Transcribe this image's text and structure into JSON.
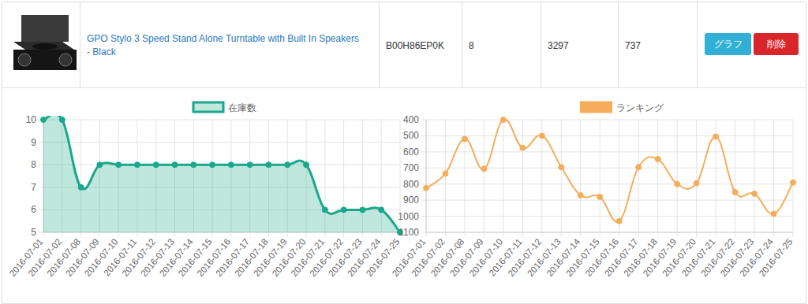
{
  "product": {
    "title": "GPO Stylo 3 Speed Stand Alone Turntable with Built In Speakers - Black",
    "asin": "B00H86EP0K",
    "cells": [
      8,
      3297,
      737
    ],
    "buttons": [
      "グラフ",
      "削除"
    ]
  },
  "chart_data": [
    {
      "type": "area",
      "categories": [
        "2016-07-01",
        "2016-07-02",
        "2016-07-08",
        "2016-07-09",
        "2016-07-10",
        "2016-07-11",
        "2016-07-12",
        "2016-07-13",
        "2016-07-14",
        "2016-07-15",
        "2016-07-16",
        "2016-07-17",
        "2016-07-18",
        "2016-07-19",
        "2016-07-20",
        "2016-07-21",
        "2016-07-22",
        "2016-07-23",
        "2016-07-24",
        "2016-07-25"
      ],
      "series": [
        {
          "name": "在庫数",
          "color": "#1aa88a",
          "values": [
            10,
            10,
            7,
            8,
            8,
            8,
            8,
            8,
            8,
            8,
            8,
            8,
            8,
            8,
            8,
            6,
            6,
            6,
            6,
            5
          ]
        }
      ],
      "ylim": [
        5,
        10
      ],
      "yticks": [
        5,
        6,
        7,
        8,
        9,
        10
      ],
      "grid": true,
      "legend": "top"
    },
    {
      "type": "line",
      "categories": [
        "2016-07-01",
        "2016-07-02",
        "2016-07-08",
        "2016-07-09",
        "2016-07-10",
        "2016-07-11",
        "2016-07-12",
        "2016-07-13",
        "2016-07-14",
        "2016-07-15",
        "2016-07-16",
        "2016-07-17",
        "2016-07-18",
        "2016-07-19",
        "2016-07-20",
        "2016-07-21",
        "2016-07-22",
        "2016-07-23",
        "2016-07-24",
        "2016-07-25"
      ],
      "series": [
        {
          "name": "ランキング",
          "color": "#f5ad5b",
          "values": [
            825,
            735,
            520,
            705,
            400,
            575,
            500,
            695,
            870,
            880,
            1030,
            695,
            645,
            800,
            795,
            505,
            850,
            860,
            985,
            790
          ]
        }
      ],
      "ylim": [
        1100,
        400
      ],
      "yticks": [
        400,
        500,
        600,
        700,
        800,
        900,
        1000,
        1100
      ],
      "grid": true,
      "legend": "top"
    }
  ]
}
